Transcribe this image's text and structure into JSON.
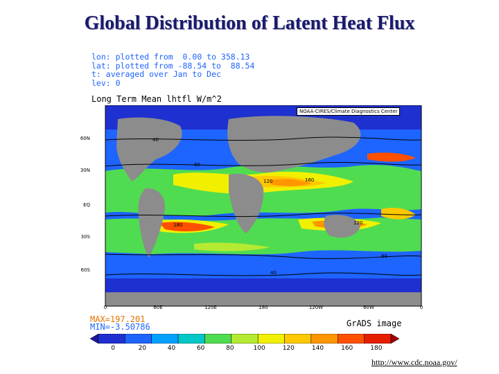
{
  "title": "Global Distribution of Latent Heat Flux",
  "meta_lines": [
    "lon: plotted from  0.00 to 358.13",
    "lat: plotted from -88.54 to  88.54",
    "t: averaged over Jan to Dec",
    "lev: 0"
  ],
  "map_title": "Long Term Mean lhtfl W/m^2",
  "credit": "NOAA-CIRES/Climate Diagnostics Center",
  "lat_labels": [
    "60N",
    "30N",
    "EQ",
    "30S",
    "60S"
  ],
  "lon_labels": [
    "0",
    "60E",
    "120E",
    "180",
    "120W",
    "60W",
    "0"
  ],
  "max_text": "MAX=197.201",
  "min_text": "MIN=-3.50786",
  "software": "GrADS image",
  "colorbar": {
    "labels": [
      "0",
      "20",
      "40",
      "60",
      "80",
      "100",
      "120",
      "140",
      "160",
      "180"
    ],
    "colors": [
      "#1e14a0",
      "#1f30d0",
      "#1e64ff",
      "#00a0ff",
      "#00c8c8",
      "#50dc50",
      "#b4eb32",
      "#f0f000",
      "#ffc800",
      "#ff9600",
      "#ff5000",
      "#e61e00",
      "#a00000"
    ]
  },
  "contour_labels": [
    "40",
    "80",
    "120",
    "160",
    "180"
  ],
  "url": "http://www.cdc.noaa.gov/"
}
